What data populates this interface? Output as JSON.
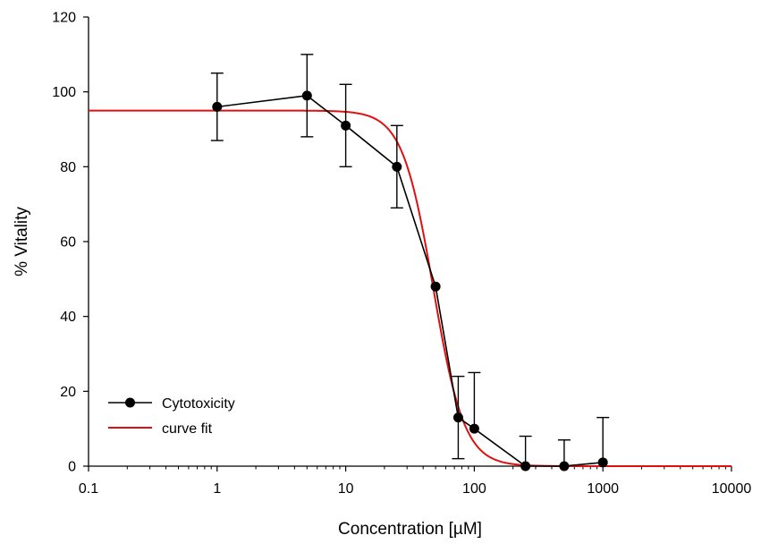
{
  "chart_data": {
    "type": "line",
    "xlabel": "Concentration [µM]",
    "ylabel": "% Vitality",
    "x_scale": "log",
    "xlim": [
      0.1,
      10000
    ],
    "ylim": [
      0,
      120
    ],
    "x_ticks": [
      0.1,
      1,
      10,
      100,
      1000,
      10000
    ],
    "x_tick_labels": [
      "0.1",
      "1",
      "10",
      "100",
      "1000",
      "10000"
    ],
    "y_ticks": [
      0,
      20,
      40,
      60,
      80,
      100,
      120
    ],
    "y_tick_labels": [
      "0",
      "20",
      "40",
      "60",
      "80",
      "100",
      "120"
    ],
    "grid": false,
    "legend_position": "bottom-left",
    "series": [
      {
        "name": "Cytotoxicity",
        "type": "line-markers-errorbars",
        "color": "#000000",
        "points": [
          {
            "x": 1,
            "y": 96,
            "err_low": 87,
            "err_high": 105
          },
          {
            "x": 5,
            "y": 99,
            "err_low": 88,
            "err_high": 110
          },
          {
            "x": 10,
            "y": 91,
            "err_low": 80,
            "err_high": 102
          },
          {
            "x": 25,
            "y": 80,
            "err_low": 69,
            "err_high": 91
          },
          {
            "x": 50,
            "y": 48,
            "err_low": null,
            "err_high": null
          },
          {
            "x": 75,
            "y": 13,
            "err_low": 2,
            "err_high": 24
          },
          {
            "x": 100,
            "y": 10,
            "err_low": null,
            "err_high": 25
          },
          {
            "x": 250,
            "y": 0,
            "err_low": null,
            "err_high": 8
          },
          {
            "x": 500,
            "y": 0,
            "err_low": null,
            "err_high": 7
          },
          {
            "x": 1000,
            "y": 1,
            "err_low": null,
            "err_high": 13
          }
        ]
      },
      {
        "name": "curve fit",
        "type": "line",
        "color": "#e01010",
        "model": {
          "top": 95,
          "bottom": 0,
          "ec50": 48,
          "hill": 3.6
        },
        "x_range": [
          0.1,
          10000
        ]
      }
    ]
  }
}
